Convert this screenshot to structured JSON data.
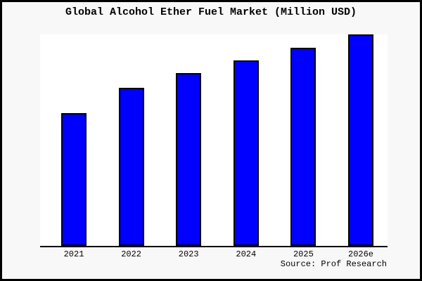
{
  "title": "Global Alcohol Ether Fuel Market (Million USD)",
  "source": "Source: Prof Research",
  "colors": {
    "bar_fill": "#0000ff",
    "bar_border": "#000000",
    "plot_background": "#ffffff",
    "page_background": "#f8f8f8",
    "frame_border": "#000000",
    "axis_line": "#000000",
    "text": "#000000"
  },
  "chart_data": {
    "type": "bar",
    "title": "Global Alcohol Ether Fuel Market (Million USD)",
    "categories": [
      "2021",
      "2022",
      "2023",
      "2024",
      "2025",
      "2026e"
    ],
    "values": [
      62.8,
      74.8,
      81.7,
      87.7,
      93.7,
      100
    ],
    "value_note": "no y-axis ticks or numeric labels are shown in the chart; values are relative bar heights normalized to 2026e = 100",
    "xlabel": "",
    "ylabel": "",
    "ylim": [
      0,
      100.7
    ],
    "grid": false,
    "legend": false,
    "bar_color": "#0000ff",
    "source_label": "Source: Prof Research"
  }
}
